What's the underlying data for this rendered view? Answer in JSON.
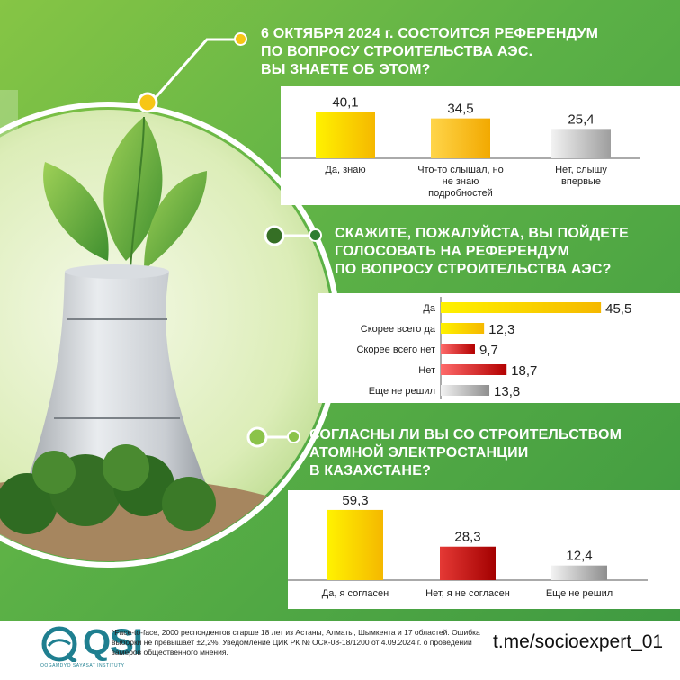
{
  "questions": {
    "q1": {
      "title_lines": [
        "6 ОКТЯБРЯ 2024 г. СОСТОИТСЯ РЕФЕРЕНДУМ",
        "ПО ВОПРОСУ СТРОИТЕЛЬСТВА АЭС.",
        "ВЫ ЗНАЕТЕ ОБ ЭТОМ?"
      ]
    },
    "q2": {
      "title_lines": [
        "СКАЖИТЕ, ПОЖАЛУЙСТА, ВЫ ПОЙДЕТЕ",
        "ГОЛОСОВАТЬ НА РЕФЕРЕНДУМ",
        "ПО ВОПРОСУ СТРОИТЕЛЬСТВА АЭС?"
      ]
    },
    "q3": {
      "title_lines": [
        "СОГЛАСНЫ ЛИ ВЫ СО СТРОИТЕЛЬСТВОМ",
        "АТОМНОЙ ЭЛЕКТРОСТАНЦИИ",
        "В КАЗАХСТАНЕ?"
      ]
    }
  },
  "chart_data": [
    {
      "type": "bar",
      "orientation": "vertical",
      "categories": [
        "Да, знаю",
        "Что-то слышал, но не знаю подробностей",
        "Нет, слышу впервые"
      ],
      "category_lines": [
        [
          "Да, знаю"
        ],
        [
          "Что-то слышал, но",
          "не знаю",
          "подробностей"
        ],
        [
          "Нет, слышу",
          "впервые"
        ]
      ],
      "values": [
        40.1,
        34.5,
        25.4
      ],
      "value_labels": [
        "40,1",
        "34,5",
        "25,4"
      ],
      "ylim": [
        0,
        42
      ]
    },
    {
      "type": "bar",
      "orientation": "horizontal",
      "categories": [
        "Да",
        "Скорее всего да",
        "Скорее всего нет",
        "Нет",
        "Еще не решил"
      ],
      "values": [
        45.5,
        12.3,
        9.7,
        18.7,
        13.8
      ],
      "value_labels": [
        "45,5",
        "12,3",
        "9,7",
        "18,7",
        "13,8"
      ],
      "xlim": [
        0,
        47
      ]
    },
    {
      "type": "bar",
      "orientation": "vertical",
      "categories": [
        "Да, я согласен",
        "Нет, я не согласен",
        "Еще не решил"
      ],
      "values": [
        59.3,
        28.3,
        12.4
      ],
      "value_labels": [
        "59,3",
        "28,3",
        "12,4"
      ],
      "ylim": [
        0,
        60
      ]
    }
  ],
  "colors": {
    "yes": "#f5c400",
    "maybe_yes": "#f9d33a",
    "no": "#c8102e",
    "undecided": "#9e9e9e",
    "background": "#5cb146",
    "footer_link": "#111111"
  },
  "footer": {
    "logo": "QSI",
    "logo_sub": "QOGAMDYQ SAYASAT INSTITUTY",
    "footnote": "*Face-to-face, 2000 респондентов старше 18 лет из Астаны, Алматы, Шымкента и 17 областей. Ошибка выборки не превышает ±2,2%. Уведомление ЦИК РК № ОСК-08-18/1200 от 4.09.2024 г. о проведении замеров общественного мнения.",
    "link": "t.me/socioexpert_01"
  }
}
